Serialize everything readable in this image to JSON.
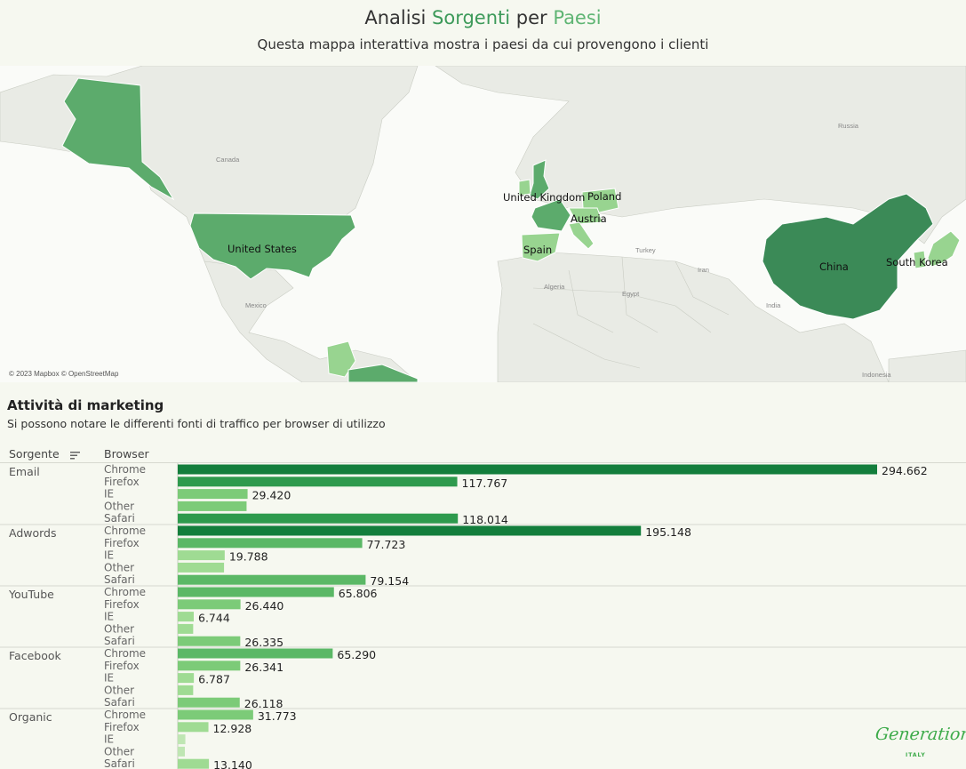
{
  "header": {
    "title_parts": [
      "Analisi ",
      "Sorgenti",
      " per ",
      "Paesi"
    ],
    "subtitle": "Questa mappa interattiva mostra i paesi da cui provengono i clienti"
  },
  "map": {
    "attribution": "© 2023 Mapbox © OpenStreetMap",
    "highlighted_countries": [
      "United States",
      "United Kingdom",
      "Poland",
      "Austria",
      "Spain",
      "China",
      "South Korea"
    ],
    "basemap_labels": [
      "Canada",
      "Mexico",
      "Russia",
      "Turkey",
      "Iran",
      "Algeria",
      "Egypt",
      "India",
      "Indonesia"
    ],
    "colors": {
      "dark": "#3b8a57",
      "mid": "#5cab6c",
      "light": "#98d490",
      "base_land": "#e9ebe5",
      "water": "#fafbf8"
    }
  },
  "section": {
    "title": "Attività di marketing",
    "subtitle": "Si possono notare le differenti fonti di traffico per browser di utilizzo",
    "col_source": "Sorgente",
    "col_browser": "Browser",
    "sort_icon": "sort-descending-icon"
  },
  "chart_data": {
    "type": "bar",
    "orientation": "horizontal",
    "groups": [
      {
        "source": "Email",
        "bars": [
          {
            "browser": "Chrome",
            "value": 294662,
            "label": "294.662"
          },
          {
            "browser": "Firefox",
            "value": 117767,
            "label": "117.767"
          },
          {
            "browser": "IE",
            "value": 29420,
            "label": "29.420"
          },
          {
            "browser": "Other",
            "value": 29000,
            "label": ""
          },
          {
            "browser": "Safari",
            "value": 118014,
            "label": "118.014"
          }
        ]
      },
      {
        "source": "Adwords",
        "bars": [
          {
            "browser": "Chrome",
            "value": 195148,
            "label": "195.148"
          },
          {
            "browser": "Firefox",
            "value": 77723,
            "label": "77.723"
          },
          {
            "browser": "IE",
            "value": 19788,
            "label": "19.788"
          },
          {
            "browser": "Other",
            "value": 19500,
            "label": ""
          },
          {
            "browser": "Safari",
            "value": 79154,
            "label": "79.154"
          }
        ]
      },
      {
        "source": "YouTube",
        "bars": [
          {
            "browser": "Chrome",
            "value": 65806,
            "label": "65.806"
          },
          {
            "browser": "Firefox",
            "value": 26440,
            "label": "26.440"
          },
          {
            "browser": "IE",
            "value": 6744,
            "label": "6.744"
          },
          {
            "browser": "Other",
            "value": 6500,
            "label": ""
          },
          {
            "browser": "Safari",
            "value": 26335,
            "label": "26.335"
          }
        ]
      },
      {
        "source": "Facebook",
        "bars": [
          {
            "browser": "Chrome",
            "value": 65290,
            "label": "65.290"
          },
          {
            "browser": "Firefox",
            "value": 26341,
            "label": "26.341"
          },
          {
            "browser": "IE",
            "value": 6787,
            "label": "6.787"
          },
          {
            "browser": "Other",
            "value": 6500,
            "label": ""
          },
          {
            "browser": "Safari",
            "value": 26118,
            "label": "26.118"
          }
        ]
      },
      {
        "source": "Organic",
        "bars": [
          {
            "browser": "Chrome",
            "value": 31773,
            "label": "31.773"
          },
          {
            "browser": "Firefox",
            "value": 12928,
            "label": "12.928"
          },
          {
            "browser": "IE",
            "value": 3200,
            "label": ""
          },
          {
            "browser": "Other",
            "value": 3000,
            "label": ""
          },
          {
            "browser": "Safari",
            "value": 13140,
            "label": "13.140"
          }
        ]
      }
    ],
    "xlim": [
      0,
      294662
    ],
    "color_scale": [
      "#bfe6b3",
      "#9fdb93",
      "#7ccb78",
      "#5bb866",
      "#2e9a4d",
      "#137e3c"
    ]
  },
  "logo": {
    "wordmark": "Generation",
    "sub": "ITALY"
  }
}
